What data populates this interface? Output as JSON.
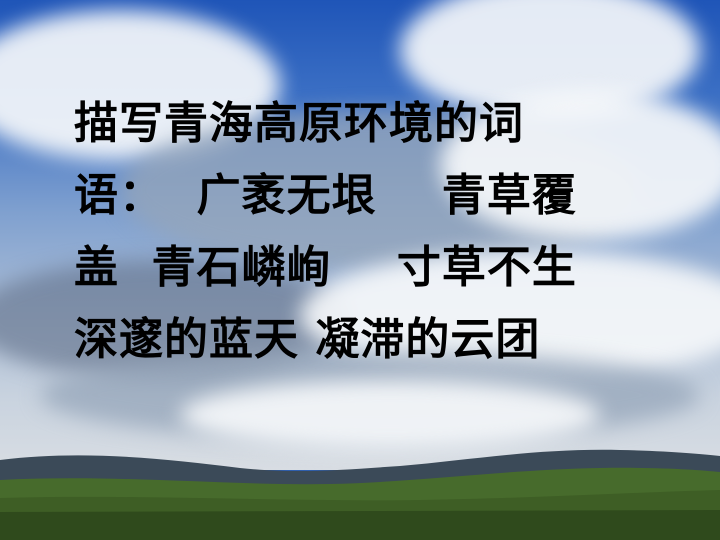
{
  "slide": {
    "lines": [
      "描写青海高原环境的词",
      "语：  广袤无垠    青草覆",
      "盖  青石嶙峋    寸草不生",
      "深邃的蓝天 凝滞的云团"
    ]
  }
}
